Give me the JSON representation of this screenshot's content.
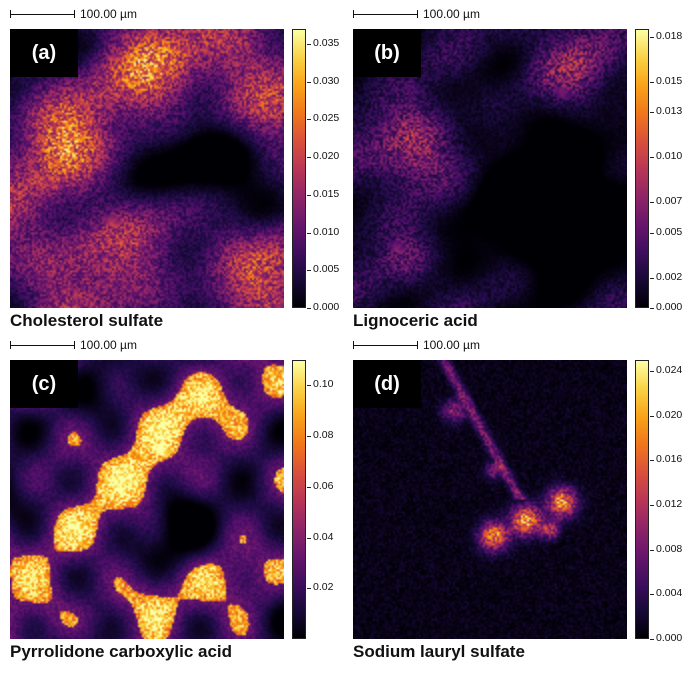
{
  "chart_data": [
    {
      "type": "heatmap",
      "panel_label": "(a)",
      "title": "Cholesterol sulfate",
      "scale_bar": "100.00 µm",
      "colormap": "inferno",
      "colorbar_range": [
        0,
        0.037
      ],
      "colorbar_ticks": [
        "0.000",
        "0.005",
        "0.010",
        "0.015",
        "0.020",
        "0.025",
        "0.030",
        "0.035"
      ]
    },
    {
      "type": "heatmap",
      "panel_label": "(b)",
      "title": "Lignoceric acid",
      "scale_bar": "100.00 µm",
      "colormap": "inferno",
      "colorbar_range": [
        0,
        0.0185
      ],
      "colorbar_ticks": [
        "0.000",
        "0.002",
        "0.005",
        "0.007",
        "0.010",
        "0.013",
        "0.015",
        "0.018"
      ]
    },
    {
      "type": "heatmap",
      "panel_label": "(c)",
      "title": "Pyrrolidone carboxylic acid",
      "scale_bar": "100.00 µm",
      "colormap": "inferno",
      "colorbar_range": [
        0,
        0.11
      ],
      "colorbar_ticks": [
        "0.02",
        "0.04",
        "0.06",
        "0.08",
        "0.10"
      ]
    },
    {
      "type": "heatmap",
      "panel_label": "(d)",
      "title": "Sodium lauryl sulfate",
      "scale_bar": "100.00 µm",
      "colormap": "inferno",
      "colorbar_range": [
        0,
        0.025
      ],
      "colorbar_ticks": [
        "0.000",
        "0.004",
        "0.008",
        "0.012",
        "0.016",
        "0.020",
        "0.024"
      ]
    }
  ]
}
